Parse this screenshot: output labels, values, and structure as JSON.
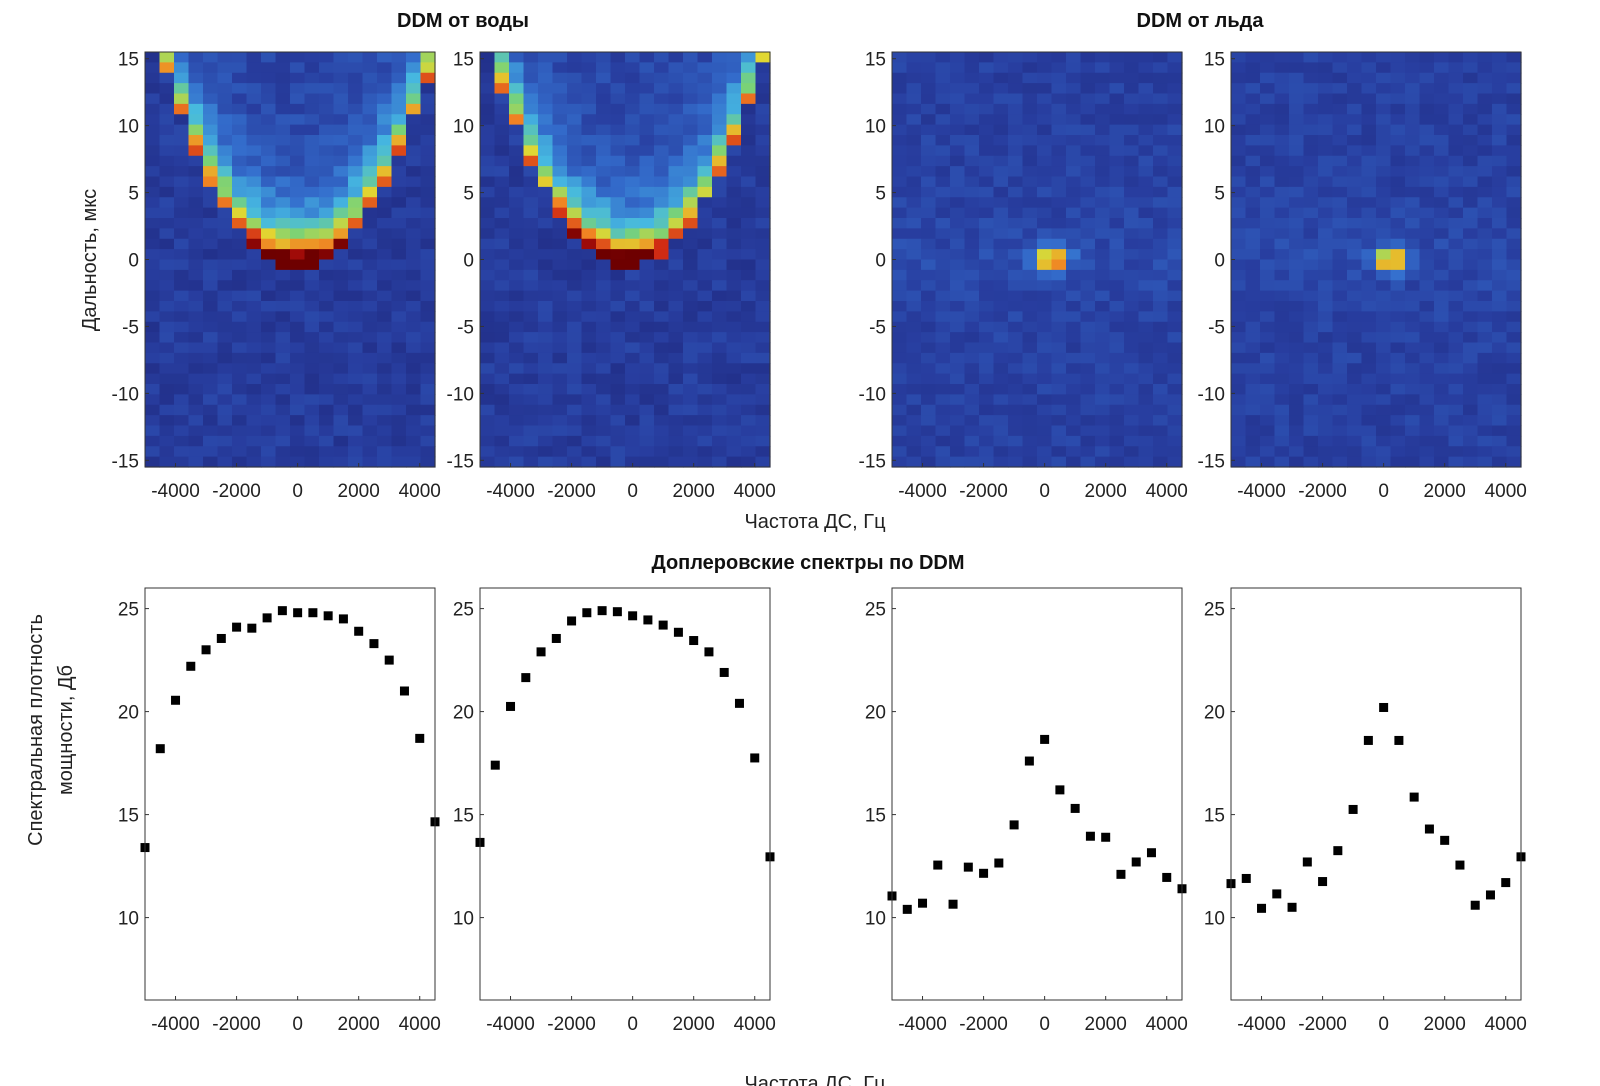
{
  "titles": {
    "water": "DDM от воды",
    "ice": "DDM от льда",
    "spectra": "Доплеровские спектры по DDM"
  },
  "labels": {
    "top_ylabel": "Дальность, мкс",
    "top_xlabel": "Частота ДС, Гц",
    "bottom_ylabel_1": "Спектральная плотность",
    "bottom_ylabel_2": "мощности, Дб",
    "bottom_xlabel": "Частота ДС, Гц"
  },
  "chart_data": [
    {
      "type": "heatmap",
      "name": "water-ddm-1",
      "kind": "water",
      "xlim": [
        -5000,
        4500
      ],
      "ylim": [
        -15.5,
        15.5
      ],
      "xticks": [
        -4000,
        -2000,
        0,
        2000,
        4000
      ],
      "yticks": [
        15,
        10,
        5,
        0,
        -5,
        -10,
        -15
      ],
      "peak_freq": 0,
      "seed": 11
    },
    {
      "type": "heatmap",
      "name": "water-ddm-2",
      "kind": "water",
      "xlim": [
        -5000,
        4500
      ],
      "ylim": [
        -15.5,
        15.5
      ],
      "xticks": [
        -4000,
        -2000,
        0,
        2000,
        4000
      ],
      "yticks": [
        15,
        10,
        5,
        0,
        -5,
        -10,
        -15
      ],
      "peak_freq": -500,
      "seed": 23
    },
    {
      "type": "heatmap",
      "name": "ice-ddm-1",
      "kind": "ice",
      "xlim": [
        -5000,
        4500
      ],
      "ylim": [
        -15.5,
        15.5
      ],
      "xticks": [
        -4000,
        -2000,
        0,
        2000,
        4000
      ],
      "yticks": [
        15,
        10,
        5,
        0,
        -5,
        -10,
        -15
      ],
      "peak_freq": 250,
      "seed": 37
    },
    {
      "type": "heatmap",
      "name": "ice-ddm-2",
      "kind": "ice",
      "xlim": [
        -5000,
        4500
      ],
      "ylim": [
        -15.5,
        15.5
      ],
      "xticks": [
        -4000,
        -2000,
        0,
        2000,
        4000
      ],
      "yticks": [
        15,
        10,
        5,
        0,
        -5,
        -10,
        -15
      ],
      "peak_freq": 250,
      "seed": 51
    },
    {
      "type": "scatter",
      "name": "water-spectrum-1",
      "xlim": [
        -5000,
        4500
      ],
      "ylim": [
        6,
        26
      ],
      "xticks": [
        -4000,
        -2000,
        0,
        2000,
        4000
      ],
      "yticks": [
        25,
        20,
        15,
        10
      ],
      "x": [
        -5000,
        -4500,
        -4000,
        -3500,
        -3000,
        -2500,
        -2000,
        -1500,
        -1000,
        -500,
        0,
        500,
        1000,
        1500,
        2000,
        2500,
        3000,
        3500,
        4000,
        4500
      ],
      "y": [
        13.4,
        18.2,
        20.55,
        22.2,
        23.0,
        23.55,
        24.1,
        24.05,
        24.55,
        24.9,
        24.8,
        24.8,
        24.65,
        24.5,
        23.9,
        23.3,
        22.5,
        21.0,
        18.7,
        14.65
      ]
    },
    {
      "type": "scatter",
      "name": "water-spectrum-2",
      "xlim": [
        -5000,
        4500
      ],
      "ylim": [
        6,
        26
      ],
      "xticks": [
        -4000,
        -2000,
        0,
        2000,
        4000
      ],
      "yticks": [
        25,
        20,
        15,
        10
      ],
      "x": [
        -5000,
        -4500,
        -4000,
        -3500,
        -3000,
        -2500,
        -2000,
        -1500,
        -1000,
        -500,
        0,
        500,
        1000,
        1500,
        2000,
        2500,
        3000,
        3500,
        4000,
        4500
      ],
      "y": [
        13.65,
        17.4,
        20.25,
        21.65,
        22.9,
        23.55,
        24.4,
        24.8,
        24.9,
        24.85,
        24.65,
        24.45,
        24.2,
        23.85,
        23.45,
        22.9,
        21.9,
        20.4,
        17.75,
        12.95
      ]
    },
    {
      "type": "scatter",
      "name": "ice-spectrum-1",
      "xlim": [
        -5000,
        4500
      ],
      "ylim": [
        6,
        26
      ],
      "xticks": [
        -4000,
        -2000,
        0,
        2000,
        4000
      ],
      "yticks": [
        25,
        20,
        15,
        10
      ],
      "x": [
        -5000,
        -4500,
        -4000,
        -3500,
        -3000,
        -2500,
        -2000,
        -1500,
        -1000,
        -500,
        0,
        500,
        1000,
        1500,
        2000,
        2500,
        3000,
        3500,
        4000,
        4500
      ],
      "y": [
        11.05,
        10.4,
        10.7,
        12.55,
        10.65,
        12.45,
        12.15,
        12.65,
        14.5,
        17.6,
        18.65,
        16.2,
        15.3,
        13.95,
        13.9,
        12.1,
        12.7,
        13.15,
        11.95,
        11.4
      ]
    },
    {
      "type": "scatter",
      "name": "ice-spectrum-2",
      "xlim": [
        -5000,
        4500
      ],
      "ylim": [
        6,
        26
      ],
      "xticks": [
        -4000,
        -2000,
        0,
        2000,
        4000
      ],
      "yticks": [
        25,
        20,
        15,
        10
      ],
      "x": [
        -5000,
        -4500,
        -4000,
        -3500,
        -3000,
        -2500,
        -2000,
        -1500,
        -1000,
        -500,
        0,
        500,
        1000,
        1500,
        2000,
        2500,
        3000,
        3500,
        4000,
        4500
      ],
      "y": [
        11.65,
        11.9,
        10.45,
        11.15,
        10.5,
        12.7,
        11.75,
        13.25,
        15.25,
        18.6,
        20.2,
        18.6,
        15.85,
        14.3,
        13.75,
        12.55,
        10.6,
        11.1,
        11.7,
        12.95
      ]
    }
  ]
}
